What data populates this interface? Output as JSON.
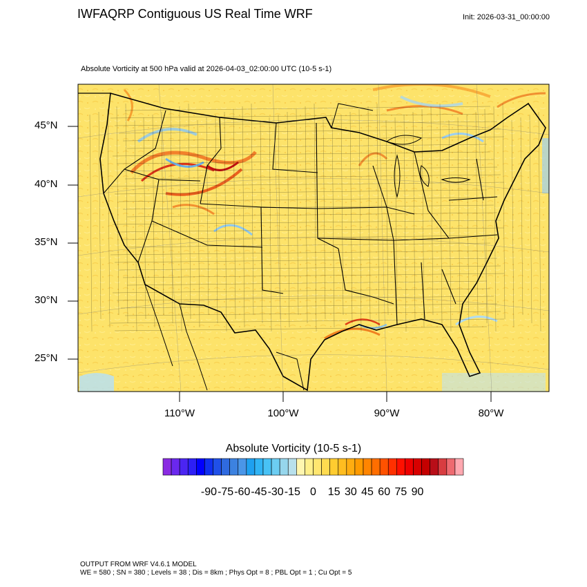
{
  "header": {
    "title": "IWFAQRP Contiguous US Real Time WRF",
    "init": "Init: 2026-03-31_00:00:00",
    "subtitle": "Absolute Vorticity at 500 hPa valid at 2026-04-03_02:00:00 UTC   (10-5 s-1)"
  },
  "map": {
    "lat_labels": [
      "45°N",
      "40°N",
      "35°N",
      "30°N",
      "25°N"
    ],
    "lon_labels": [
      "110°W",
      "100°W",
      "90°W",
      "80°W"
    ],
    "background_color": "#fde36a"
  },
  "colorbar": {
    "title": "Absolute Vorticity  (10-5 s-1)",
    "labels": [
      "-90",
      "-75",
      "-60",
      "-45",
      "-30",
      "-15",
      "0",
      "15",
      "30",
      "45",
      "60",
      "75",
      "90"
    ],
    "colors": [
      "#8a2be2",
      "#6a28ee",
      "#4b25f2",
      "#2d1ff6",
      "#0000ff",
      "#1030f0",
      "#2050e8",
      "#2f6ae0",
      "#3c82e0",
      "#4a96e8",
      "#1ea0f0",
      "#30b4f5",
      "#48c2f5",
      "#6ccdf2",
      "#96d6ec",
      "#b8e0ec",
      "#fff6b0",
      "#ffef8a",
      "#ffe670",
      "#ffdb50",
      "#ffcc30",
      "#ffbd20",
      "#ffad10",
      "#ff9b00",
      "#ff8500",
      "#ff6e00",
      "#ff5200",
      "#ff3000",
      "#ff1000",
      "#ee0000",
      "#d80000",
      "#c40000",
      "#b80e18",
      "#d83c40",
      "#ee6a70",
      "#ffa8b0"
    ]
  },
  "footer": {
    "line1": "OUTPUT FROM WRF V4.6.1 MODEL",
    "line2": "WE = 580 ; SN = 380 ; Levels = 38 ; Dis = 8km ; Phys Opt = 8 ; PBL Opt = 1 ; Cu Opt = 5"
  }
}
